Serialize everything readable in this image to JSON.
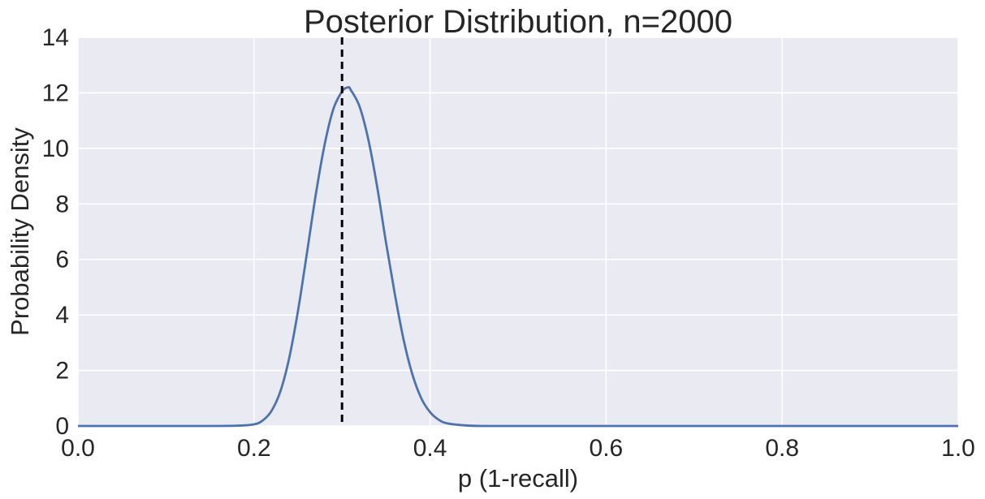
{
  "chart_data": {
    "type": "line",
    "title": "Posterior Distribution, n=2000",
    "xlabel": "p (1-recall)",
    "ylabel": "Probability Density",
    "xlim": [
      0.0,
      1.0
    ],
    "ylim": [
      0,
      14
    ],
    "x_ticks": [
      "0.0",
      "0.2",
      "0.4",
      "0.6",
      "0.8",
      "1.0"
    ],
    "y_ticks": [
      "0",
      "2",
      "4",
      "6",
      "8",
      "10",
      "12",
      "14"
    ],
    "grid": true,
    "background_color": "#EAEAF2",
    "grid_color": "#FFFFFF",
    "series": [
      {
        "color": "#4C72B0",
        "x": [
          0.0,
          0.05,
          0.1,
          0.15,
          0.18,
          0.2,
          0.21,
          0.22,
          0.23,
          0.24,
          0.25,
          0.26,
          0.27,
          0.28,
          0.29,
          0.3,
          0.307,
          0.31,
          0.32,
          0.33,
          0.34,
          0.35,
          0.36,
          0.37,
          0.38,
          0.39,
          0.4,
          0.41,
          0.42,
          0.44,
          0.46,
          0.5,
          0.6,
          0.7,
          0.8,
          0.9,
          1.0
        ],
        "y": [
          0,
          0,
          0,
          0,
          0.01,
          0.06,
          0.2,
          0.55,
          1.25,
          2.45,
          4.15,
          6.2,
          8.3,
          10.1,
          11.4,
          12.05,
          12.2,
          12.1,
          11.5,
          10.3,
          8.6,
          6.6,
          4.75,
          3.1,
          1.85,
          1.0,
          0.5,
          0.22,
          0.09,
          0.02,
          0.0,
          0,
          0,
          0,
          0,
          0,
          0
        ]
      }
    ],
    "reference_line": {
      "orientation": "vertical",
      "x": 0.3,
      "style": "dashed",
      "color": "#000000"
    }
  }
}
